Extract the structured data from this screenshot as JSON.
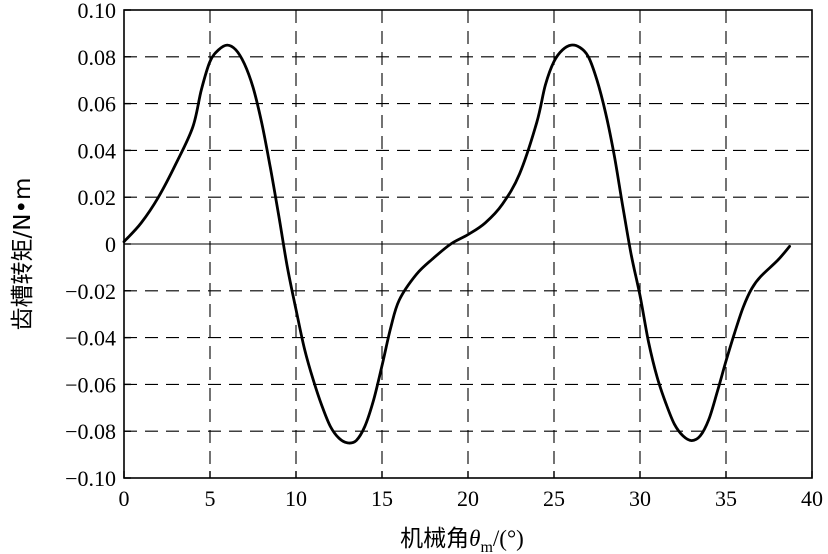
{
  "chart_data": {
    "type": "line",
    "title": "",
    "xlabel": {
      "prefix": "机械角",
      "symbol": "θ",
      "subscript": "m",
      "suffix": "/(°)"
    },
    "ylabel": "齿槽转矩/N•m",
    "xlim": [
      0,
      40
    ],
    "ylim": [
      -0.1,
      0.1
    ],
    "x_ticks": [
      "0",
      "5",
      "10",
      "15",
      "20",
      "25",
      "30",
      "35",
      "40"
    ],
    "y_ticks": [
      "0.10",
      "0.08",
      "0.06",
      "0.04",
      "0.02",
      "0",
      "−0.02",
      "−0.04",
      "−0.06",
      "−0.08",
      "−0.10"
    ],
    "x_tick_values": [
      0,
      5,
      10,
      15,
      20,
      25,
      30,
      35,
      40
    ],
    "y_tick_values": [
      0.1,
      0.08,
      0.06,
      0.04,
      0.02,
      0,
      -0.02,
      -0.04,
      -0.06,
      -0.08,
      -0.1
    ],
    "grid": true,
    "series": [
      {
        "x": [
          0,
          1,
          2,
          3,
          4,
          4.5,
          5,
          5.5,
          6,
          6.5,
          7,
          7.5,
          8,
          8.5,
          9,
          9.5,
          10,
          10.5,
          11,
          11.5,
          12,
          12.5,
          13,
          13.5,
          14,
          14.5,
          15,
          15.5,
          16,
          17,
          18,
          19,
          20,
          21,
          22,
          23,
          24,
          24.5,
          25,
          25.5,
          26,
          26.5,
          27,
          27.5,
          28,
          28.5,
          29,
          29.5,
          30,
          30.5,
          31,
          31.5,
          32,
          32.5,
          33,
          33.5,
          34,
          34.5,
          35,
          35.5,
          36,
          36.5,
          37,
          38,
          38.7
        ],
        "y": [
          0.001,
          0.009,
          0.02,
          0.034,
          0.05,
          0.066,
          0.078,
          0.083,
          0.085,
          0.083,
          0.077,
          0.067,
          0.052,
          0.033,
          0.012,
          -0.01,
          -0.028,
          -0.045,
          -0.058,
          -0.069,
          -0.078,
          -0.083,
          -0.085,
          -0.084,
          -0.078,
          -0.067,
          -0.052,
          -0.036,
          -0.024,
          -0.013,
          -0.006,
          0.0,
          0.004,
          0.009,
          0.017,
          0.03,
          0.052,
          0.068,
          0.078,
          0.083,
          0.085,
          0.084,
          0.08,
          0.07,
          0.056,
          0.038,
          0.016,
          -0.005,
          -0.022,
          -0.042,
          -0.057,
          -0.068,
          -0.077,
          -0.082,
          -0.084,
          -0.082,
          -0.075,
          -0.063,
          -0.05,
          -0.038,
          -0.027,
          -0.019,
          -0.014,
          -0.007,
          -0.001
        ]
      }
    ]
  }
}
